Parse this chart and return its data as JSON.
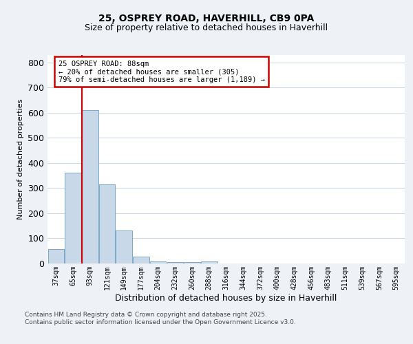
{
  "title1": "25, OSPREY ROAD, HAVERHILL, CB9 0PA",
  "title2": "Size of property relative to detached houses in Haverhill",
  "xlabel": "Distribution of detached houses by size in Haverhill",
  "ylabel": "Number of detached properties",
  "bins": [
    "37sqm",
    "65sqm",
    "93sqm",
    "121sqm",
    "149sqm",
    "177sqm",
    "204sqm",
    "232sqm",
    "260sqm",
    "288sqm",
    "316sqm",
    "344sqm",
    "372sqm",
    "400sqm",
    "428sqm",
    "456sqm",
    "483sqm",
    "511sqm",
    "539sqm",
    "567sqm",
    "595sqm"
  ],
  "values": [
    55,
    360,
    610,
    315,
    130,
    25,
    8,
    5,
    5,
    7,
    0,
    0,
    0,
    0,
    0,
    0,
    0,
    0,
    0,
    0,
    0
  ],
  "bar_color": "#c8d8e8",
  "bar_edge_color": "#7aaac8",
  "marker_value": 1.525,
  "marker_color": "#cc0000",
  "annotation_text": "25 OSPREY ROAD: 88sqm\n← 20% of detached houses are smaller (305)\n79% of semi-detached houses are larger (1,189) →",
  "annotation_box_color": "#ffffff",
  "annotation_box_edge": "#cc0000",
  "footer1": "Contains HM Land Registry data © Crown copyright and database right 2025.",
  "footer2": "Contains public sector information licensed under the Open Government Licence v3.0.",
  "ylim": [
    0,
    830
  ],
  "yticks": [
    0,
    100,
    200,
    300,
    400,
    500,
    600,
    700,
    800
  ],
  "background_color": "#eef2f7",
  "plot_bg_color": "#ffffff"
}
